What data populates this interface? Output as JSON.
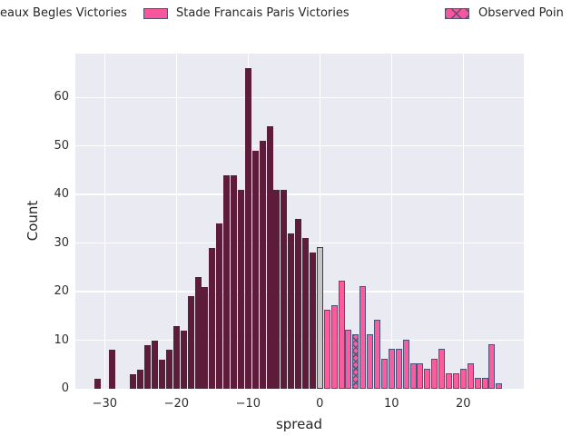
{
  "legend": {
    "items": [
      {
        "label": "eaux Begles Victories",
        "swatch": "cropped-offscreen"
      },
      {
        "label": "Stade Francais Paris Victories",
        "swatch": "solid-pink"
      },
      {
        "label": "Observed Poin",
        "swatch": "hatched-pink"
      }
    ]
  },
  "axes": {
    "xlabel": "spread",
    "ylabel": "Count",
    "x_ticks": [
      {
        "v": -30,
        "label": "−30"
      },
      {
        "v": -20,
        "label": "−20"
      },
      {
        "v": -10,
        "label": "−10"
      },
      {
        "v": 0,
        "label": "0"
      },
      {
        "v": 10,
        "label": "10"
      },
      {
        "v": 20,
        "label": "20"
      }
    ],
    "y_ticks": [
      {
        "v": 0,
        "label": "0"
      },
      {
        "v": 10,
        "label": "10"
      },
      {
        "v": 20,
        "label": "20"
      },
      {
        "v": 30,
        "label": "30"
      },
      {
        "v": 40,
        "label": "40"
      },
      {
        "v": 50,
        "label": "50"
      },
      {
        "v": 60,
        "label": "60"
      }
    ]
  },
  "colors": {
    "plot_background": "#eaeaf2",
    "grid": "#ffffff",
    "bordeaux_bar": "#5d1c39",
    "stade_bar": "#fb5c9d",
    "tie_bar": "#c6c6c6",
    "bar_edge": "#4b5379",
    "text": "#262626"
  },
  "chart_data": {
    "type": "bar",
    "subtype": "histogram",
    "title": "",
    "xlabel": "spread",
    "ylabel": "Count",
    "bin_width": 1,
    "xlim": [
      -34.1,
      28.4
    ],
    "ylim": [
      0,
      69
    ],
    "grid": true,
    "legend_position": "top",
    "x": [
      -31,
      -29,
      -26,
      -25,
      -24,
      -23,
      -22,
      -21,
      -20,
      -19,
      -18,
      -17,
      -16,
      -15,
      -14,
      -13,
      -12,
      -11,
      -10,
      -9,
      -8,
      -7,
      -6,
      -5,
      -4,
      -3,
      -2,
      -1,
      0,
      1,
      2,
      3,
      4,
      5,
      6,
      7,
      8,
      9,
      10,
      11,
      12,
      13,
      14,
      15,
      16,
      17,
      18,
      19,
      20,
      21,
      22,
      23,
      24,
      25
    ],
    "counts": [
      2,
      8,
      3,
      4,
      9,
      10,
      6,
      8,
      13,
      12,
      19,
      23,
      21,
      29,
      34,
      44,
      44,
      41,
      66,
      49,
      51,
      54,
      41,
      41,
      32,
      35,
      31,
      28,
      29,
      16,
      17,
      22,
      12,
      11,
      21,
      11,
      14,
      6,
      8,
      8,
      10,
      5,
      5,
      4,
      6,
      8,
      3,
      3,
      4,
      5,
      2,
      2,
      9,
      1
    ],
    "series_rule": {
      "negative_spread": "eaux Begles Victories (bordeaux bars)",
      "zero_spread": "tie (gray bar)",
      "positive_spread": "Stade Francais Paris Victories (pink bars)"
    },
    "observed": {
      "x": 5,
      "count": 11,
      "label": "Observed Poin"
    }
  }
}
